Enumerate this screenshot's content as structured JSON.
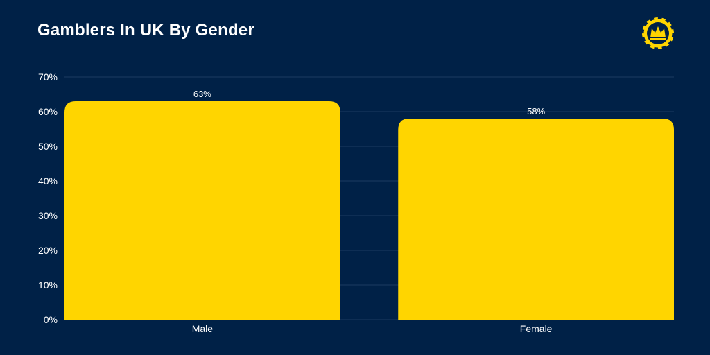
{
  "chart_data": {
    "type": "bar",
    "title": "Gamblers In UK By Gender",
    "categories": [
      "Male",
      "Female"
    ],
    "values": [
      63,
      58
    ],
    "data_labels": [
      "63%",
      "58%"
    ],
    "ylim": [
      0,
      70
    ],
    "yticks": [
      0,
      10,
      20,
      30,
      40,
      50,
      60,
      70
    ],
    "ytick_labels": [
      "0%",
      "10%",
      "20%",
      "30%",
      "40%",
      "50%",
      "60%",
      "70%"
    ],
    "xlabel": "",
    "ylabel": "",
    "grid": true,
    "legend": "none"
  },
  "colors": {
    "background": "#002147",
    "bar": "#FFD500",
    "grid": "#1B3A60",
    "text": "#FFFFFF"
  },
  "logo": {
    "icon": "crown-chip-icon"
  }
}
